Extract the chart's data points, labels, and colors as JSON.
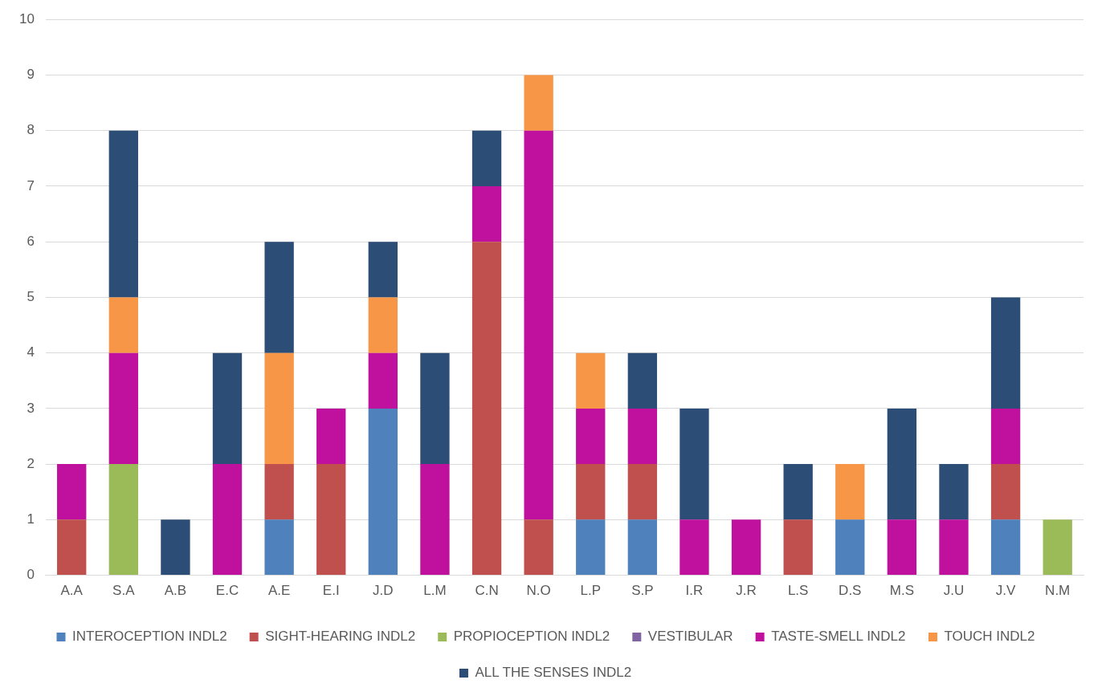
{
  "chart_data": {
    "type": "bar",
    "stacked": true,
    "categories": [
      "A.A",
      "S.A",
      "A.B",
      "E.C",
      "A.E",
      "E.I",
      "J.D",
      "L.M",
      "C.N",
      "N.O",
      "L.P",
      "S.P",
      "I.R",
      "J.R",
      "L.S",
      "D.S",
      "M.S",
      "J.U",
      "J.V",
      "N.M"
    ],
    "series": [
      {
        "name": "INTEROCEPTION INDL2",
        "color": "#4f81bd",
        "values": [
          0,
          0,
          0,
          0,
          1,
          0,
          3,
          0,
          0,
          0,
          1,
          1,
          0,
          0,
          0,
          1,
          0,
          0,
          1,
          0
        ]
      },
      {
        "name": "SIGHT-HEARING INDL2",
        "color": "#c0504d",
        "values": [
          1,
          0,
          0,
          0,
          1,
          2,
          0,
          0,
          6,
          1,
          1,
          1,
          0,
          0,
          1,
          0,
          0,
          0,
          1,
          0
        ]
      },
      {
        "name": "PROPIOCEPTION INDL2",
        "color": "#9bbb59",
        "values": [
          0,
          2,
          0,
          0,
          0,
          0,
          0,
          0,
          0,
          0,
          0,
          0,
          0,
          0,
          0,
          0,
          0,
          0,
          0,
          1
        ]
      },
      {
        "name": "VESTIBULAR",
        "color": "#8064a2",
        "values": [
          0,
          0,
          0,
          0,
          0,
          0,
          0,
          0,
          0,
          0,
          0,
          0,
          0,
          0,
          0,
          0,
          0,
          0,
          0,
          0
        ]
      },
      {
        "name": "TASTE-SMELL INDL2",
        "color": "#c0109e",
        "values": [
          1,
          2,
          0,
          2,
          0,
          1,
          1,
          2,
          1,
          7,
          1,
          1,
          1,
          1,
          0,
          0,
          1,
          1,
          1,
          0
        ]
      },
      {
        "name": "TOUCH INDL2",
        "color": "#f79646",
        "values": [
          0,
          1,
          0,
          0,
          2,
          0,
          1,
          0,
          0,
          1,
          1,
          0,
          0,
          0,
          0,
          1,
          0,
          0,
          0,
          0
        ]
      },
      {
        "name": "ALL THE SENSES INDL2",
        "color": "#2c4d75",
        "values": [
          0,
          3,
          1,
          2,
          2,
          0,
          1,
          2,
          1,
          0,
          0,
          1,
          2,
          0,
          1,
          0,
          2,
          1,
          2,
          0
        ]
      }
    ],
    "ylim": [
      0,
      10
    ],
    "yticks": [
      0,
      1,
      2,
      3,
      4,
      5,
      6,
      7,
      8,
      9,
      10
    ],
    "grid": "y",
    "legend": "bottom"
  }
}
